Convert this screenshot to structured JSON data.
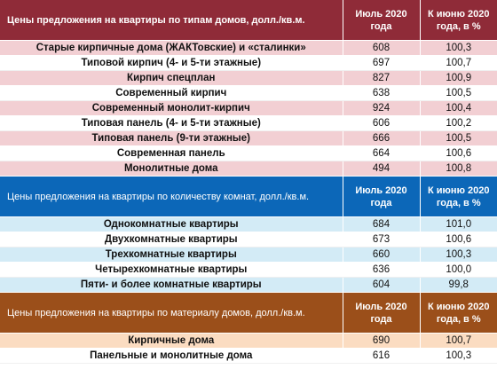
{
  "sections": [
    {
      "header": {
        "title": "Цены предложения на квартиры по типам домов, долл./кв.м.",
        "col_july": "Июль 2020 года",
        "col_pct": "К июню 2020 года, в %"
      },
      "rows": [
        {
          "name": "Старые кирпичные дома (ЖАКТовские) и «сталинки»",
          "july": "608",
          "pct": "100,3"
        },
        {
          "name": "Типовой кирпич (4- и 5-ти этажные)",
          "july": "697",
          "pct": "100,7"
        },
        {
          "name": "Кирпич спецплан",
          "july": "827",
          "pct": "100,9"
        },
        {
          "name": "Современный кирпич",
          "july": "638",
          "pct": "100,5"
        },
        {
          "name": "Современный монолит-кирпич",
          "july": "924",
          "pct": "100,4"
        },
        {
          "name": "Типовая панель (4- и 5-ти этажные)",
          "july": "606",
          "pct": "100,2"
        },
        {
          "name": "Типовая панель (9-ти этажные)",
          "july": "666",
          "pct": "100,5"
        },
        {
          "name": "Современная панель",
          "july": "664",
          "pct": "100,6"
        },
        {
          "name": "Монолитные дома",
          "july": "494",
          "pct": "100,8"
        }
      ]
    },
    {
      "header": {
        "title": "Цены предложения на квартиры по количеству комнат, долл./кв.м.",
        "col_july": "Июль 2020 года",
        "col_pct": "К июню 2020 года, в %"
      },
      "rows": [
        {
          "name": "Однокомнатные квартиры",
          "july": "684",
          "pct": "101,0"
        },
        {
          "name": "Двухкомнатные квартиры",
          "july": "673",
          "pct": "100,6"
        },
        {
          "name": "Трехкомнатные квартиры",
          "july": "660",
          "pct": "100,3"
        },
        {
          "name": "Четырехкомнатные квартиры",
          "july": "636",
          "pct": "100,0"
        },
        {
          "name": "Пяти- и более комнатные квартиры",
          "july": "604",
          "pct": "99,8"
        }
      ]
    },
    {
      "header": {
        "title": "Цены предложения на квартиры по материалу домов, долл./кв.м.",
        "col_july": "Июль 2020 года",
        "col_pct": "К июню 2020 года, в %"
      },
      "rows": [
        {
          "name": "Кирпичные дома",
          "july": "690",
          "pct": "100,7"
        },
        {
          "name": "Панельные и монолитные дома",
          "july": "616",
          "pct": "100,3"
        }
      ]
    }
  ]
}
